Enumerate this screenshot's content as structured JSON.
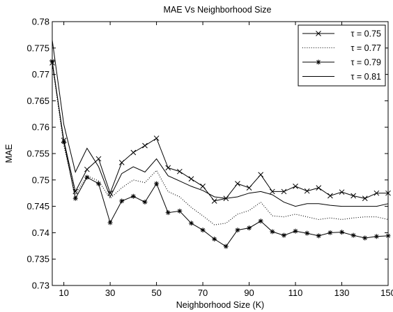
{
  "chart_data": {
    "type": "line",
    "title": "MAE Vs Neighborhood Size",
    "xlabel": "Neighborhood Size (K)",
    "ylabel": "MAE",
    "xlim": [
      5,
      150
    ],
    "ylim": [
      0.73,
      0.78
    ],
    "xticks": [
      10,
      30,
      50,
      70,
      90,
      110,
      130,
      150
    ],
    "yticks": [
      0.73,
      0.735,
      0.74,
      0.745,
      0.75,
      0.755,
      0.76,
      0.765,
      0.77,
      0.775,
      0.78
    ],
    "xtick_labels": [
      "10",
      "30",
      "50",
      "70",
      "90",
      "110",
      "130",
      "150"
    ],
    "ytick_labels": [
      "0.73",
      "0.735",
      "0.74",
      "0.745",
      "0.75",
      "0.755",
      "0.76",
      "0.765",
      "0.77",
      "0.775",
      "0.78"
    ],
    "grid": false,
    "legend_position": "top-right",
    "x": [
      5,
      10,
      15,
      20,
      25,
      30,
      35,
      40,
      45,
      50,
      55,
      60,
      65,
      70,
      75,
      80,
      85,
      90,
      95,
      100,
      105,
      110,
      115,
      120,
      125,
      130,
      135,
      140,
      145,
      150
    ],
    "series": [
      {
        "name": "τ = 0.75",
        "marker": "x",
        "line": "solid",
        "values": [
          0.7722,
          0.7575,
          0.7478,
          0.752,
          0.754,
          0.7475,
          0.7533,
          0.7552,
          0.7565,
          0.7579,
          0.7523,
          0.7516,
          0.7502,
          0.7488,
          0.746,
          0.7465,
          0.7493,
          0.7485,
          0.751,
          0.7478,
          0.7478,
          0.7488,
          0.7479,
          0.7485,
          0.747,
          0.7477,
          0.747,
          0.7465,
          0.7475,
          0.7475
        ]
      },
      {
        "name": "τ = 0.77",
        "marker": "none",
        "line": "dotted",
        "values": [
          0.772,
          0.7565,
          0.7472,
          0.7508,
          0.7498,
          0.7465,
          0.7485,
          0.75,
          0.7495,
          0.7518,
          0.7478,
          0.7468,
          0.7448,
          0.7432,
          0.7415,
          0.7418,
          0.7435,
          0.7442,
          0.7458,
          0.7432,
          0.743,
          0.7435,
          0.743,
          0.7425,
          0.7428,
          0.7425,
          0.7428,
          0.743,
          0.743,
          0.7425
        ]
      },
      {
        "name": "τ = 0.79",
        "marker": "star",
        "line": "solid",
        "values": [
          0.7725,
          0.7572,
          0.7465,
          0.7505,
          0.7493,
          0.7419,
          0.746,
          0.7469,
          0.7458,
          0.7493,
          0.7438,
          0.7441,
          0.7418,
          0.7405,
          0.7388,
          0.7374,
          0.7405,
          0.7409,
          0.7422,
          0.7402,
          0.7395,
          0.7403,
          0.7399,
          0.7394,
          0.74,
          0.7401,
          0.7395,
          0.739,
          0.7393,
          0.7394
        ]
      },
      {
        "name": "τ = 0.81",
        "marker": "none",
        "line": "solid",
        "values": [
          0.7765,
          0.7605,
          0.7515,
          0.756,
          0.7525,
          0.7468,
          0.7512,
          0.7525,
          0.7515,
          0.754,
          0.7508,
          0.7498,
          0.7488,
          0.748,
          0.7468,
          0.7465,
          0.7468,
          0.7475,
          0.7478,
          0.7472,
          0.7458,
          0.745,
          0.7455,
          0.7455,
          0.7452,
          0.745,
          0.745,
          0.745,
          0.745,
          0.7455
        ]
      }
    ]
  }
}
